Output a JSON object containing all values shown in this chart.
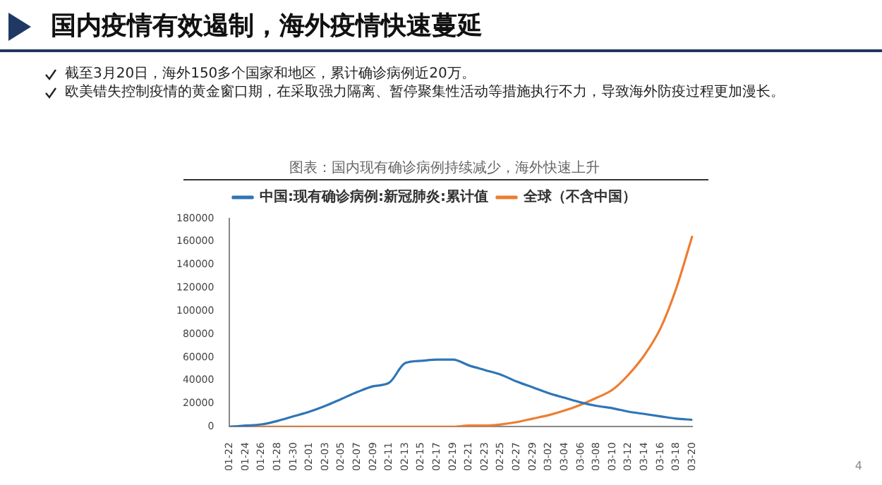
{
  "chart_data": {
    "type": "line",
    "title": "国内疫情有效遏制，海外疫情快速蔓延",
    "subtitle": "图表：国内现有确诊病例持续减少，海外快速上升",
    "annotations": [
      "截至3月20日，海外150多个国家和地区，累计确诊病例近20万。",
      "欧美错失控制疫情的黄金窗口期，在采取强力隔离、暂停聚集性活动等措施执行不力，导致海外防疫过程更加漫长。",
      "4"
    ],
    "categories": [
      "01-22",
      "01-24",
      "01-26",
      "01-28",
      "01-30",
      "02-01",
      "02-03",
      "02-05",
      "02-07",
      "02-09",
      "02-11",
      "02-13",
      "02-15",
      "02-17",
      "02-19",
      "02-21",
      "02-23",
      "02-25",
      "02-27",
      "02-29",
      "03-02",
      "03-04",
      "03-06",
      "03-08",
      "03-10",
      "03-12",
      "03-14",
      "03-16",
      "03-18",
      "03-20"
    ],
    "series": [
      {
        "name": "中国:现有确诊病例:新冠肺炎:累计值",
        "color": "#2e75b6",
        "values": [
          0,
          1000,
          2000,
          5000,
          9000,
          13000,
          18000,
          24000,
          30000,
          35000,
          38000,
          55000,
          57000,
          58000,
          58000,
          53000,
          49000,
          45000,
          39000,
          34000,
          29000,
          25000,
          21000,
          18000,
          16000,
          13000,
          11000,
          9000,
          7000,
          6000
        ]
      },
      {
        "name": "全球（不含中国）",
        "color": "#ed7d31",
        "values": [
          0,
          0,
          0,
          0,
          0,
          0,
          0,
          0,
          0,
          0,
          0,
          0,
          0,
          0,
          0,
          1000,
          1000,
          2000,
          4000,
          7000,
          10000,
          14000,
          19000,
          25000,
          32000,
          45000,
          62000,
          85000,
          120000,
          165000
        ]
      }
    ],
    "ylim": [
      0,
      180000
    ],
    "yticks": [
      0,
      20000,
      40000,
      60000,
      80000,
      100000,
      120000,
      140000,
      160000,
      180000
    ],
    "grid": false,
    "legend": "top",
    "marker": "none",
    "line_style": "solid"
  }
}
